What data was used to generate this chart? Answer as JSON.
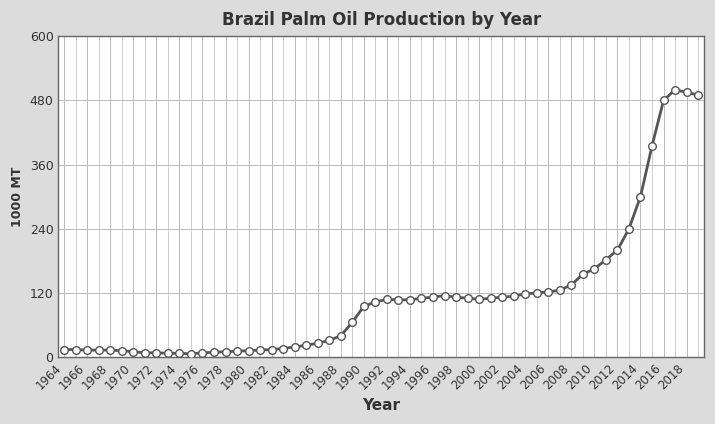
{
  "title": "Brazil Palm Oil Production by Year",
  "xlabel": "Year",
  "ylabel": "1000 MT",
  "background_color": "#dcdcdc",
  "plot_bg_color": "#ffffff",
  "line_color": "#555555",
  "marker_color": "white",
  "marker_edge_color": "#555555",
  "ylim": [
    0,
    600
  ],
  "yticks": [
    0,
    120,
    240,
    360,
    480,
    600
  ],
  "xlim": [
    1963.5,
    2019.5
  ],
  "years": [
    1964,
    1965,
    1966,
    1967,
    1968,
    1969,
    1970,
    1971,
    1972,
    1973,
    1974,
    1975,
    1976,
    1977,
    1978,
    1979,
    1980,
    1981,
    1982,
    1983,
    1984,
    1985,
    1986,
    1987,
    1988,
    1989,
    1990,
    1991,
    1992,
    1993,
    1994,
    1995,
    1996,
    1997,
    1998,
    1999,
    2000,
    2001,
    2002,
    2003,
    2004,
    2005,
    2006,
    2007,
    2008,
    2009,
    2010,
    2011,
    2012,
    2013,
    2014,
    2015,
    2016,
    2017,
    2018,
    2019
  ],
  "values": [
    14,
    14,
    13,
    13,
    13,
    12,
    10,
    8,
    8,
    7,
    7,
    6,
    8,
    9,
    10,
    11,
    12,
    13,
    14,
    16,
    19,
    22,
    26,
    31,
    40,
    65,
    95,
    103,
    108,
    107,
    107,
    110,
    112,
    115,
    112,
    110,
    108,
    110,
    112,
    114,
    118,
    120,
    122,
    125,
    135,
    155,
    165,
    182,
    200,
    240,
    300,
    395,
    480,
    500,
    495,
    490
  ]
}
